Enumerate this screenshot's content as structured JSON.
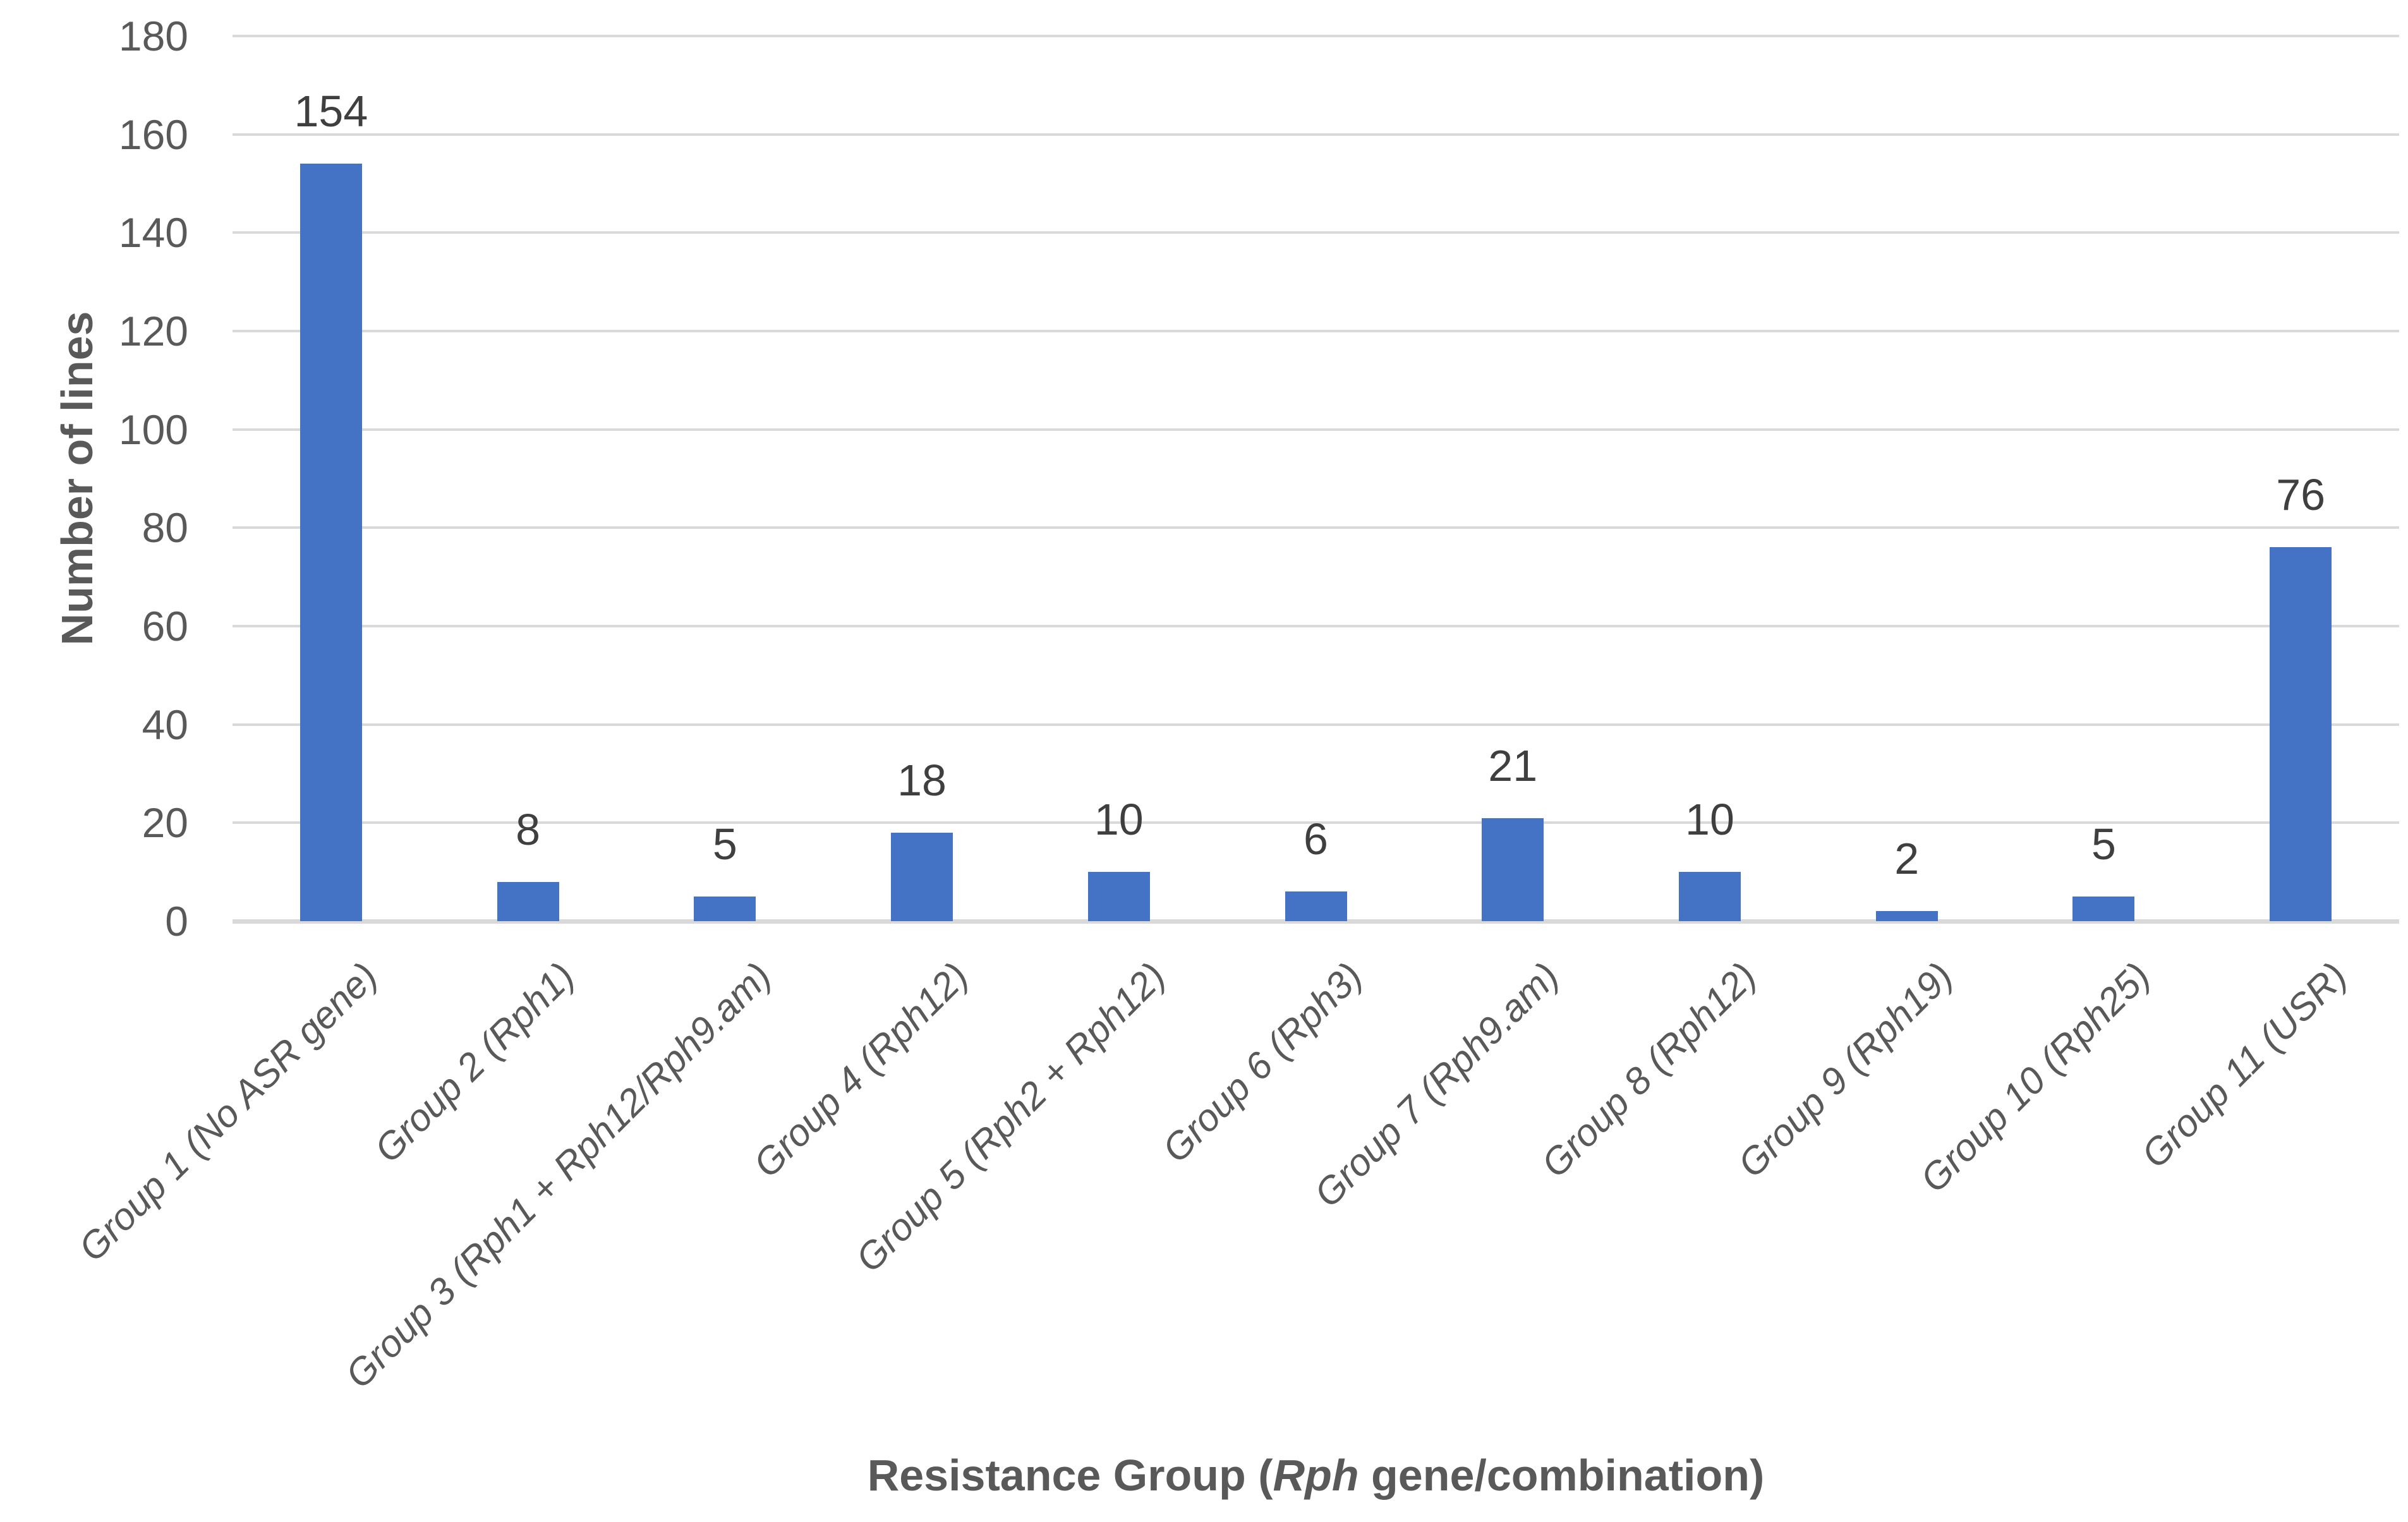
{
  "chart_data": {
    "type": "bar",
    "title": "",
    "ylabel": "Number of lines",
    "xlabel": "Resistance Group (Rph gene/combination)",
    "xlabel_parts": [
      "Resistance Group (",
      "Rph",
      " gene/combination)"
    ],
    "categories": [
      "Group 1 (No ASR gene)",
      "Group 2 (Rph1)",
      "Group 3 (Rph1 + Rph12/Rph9.am)",
      "Group 4 (Rph12)",
      "Group 5 (Rph2 + Rph12)",
      "Group 6 (Rph3)",
      "Group 7 (Rph9.am)",
      "Group 8 (Rph12)",
      "Group 9 (Rph19)",
      "Group 10 (Rph25)",
      "Group 11 (USR)"
    ],
    "values": [
      154,
      8,
      5,
      18,
      10,
      6,
      21,
      10,
      2,
      5,
      76
    ],
    "data_labels": true,
    "ylim": [
      0,
      180
    ],
    "ytick_step": 20,
    "yticks": [
      0,
      20,
      40,
      60,
      80,
      100,
      120,
      140,
      160,
      180
    ],
    "grid": true,
    "legend": "none",
    "bar_color": "#4472C4",
    "gridline_color": "#D9D9D9",
    "axis_line_color": "#D9D9D9",
    "tick_label_color": "#595959",
    "data_label_color": "#3F3F3F",
    "category_label_color": "#595959",
    "axis_title_color": "#595959",
    "background": "#FFFFFF"
  }
}
